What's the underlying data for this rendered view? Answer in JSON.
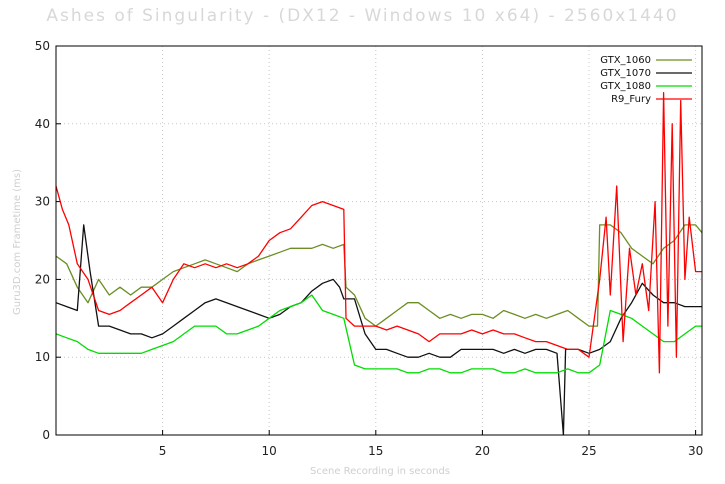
{
  "chart_data": {
    "type": "line",
    "title": "Ashes of Singularity - (DX12 - Windows 10 x64) - 2560x1440",
    "xlabel": "Scene Recording in seconds",
    "ylabel": "Guru3D.com Frametime (ms)",
    "xlim": [
      0,
      30.3
    ],
    "ylim": [
      0,
      50
    ],
    "xticks": [
      5,
      10,
      15,
      20,
      25,
      30
    ],
    "yticks": [
      0,
      10,
      20,
      30,
      40,
      50
    ],
    "grid": true,
    "legend_position": "top-right",
    "series": [
      {
        "name": "GTX_1060",
        "color": "#6b8e23",
        "points": [
          [
            0,
            23
          ],
          [
            0.5,
            22
          ],
          [
            1,
            19
          ],
          [
            1.5,
            17
          ],
          [
            2,
            20
          ],
          [
            2.5,
            18
          ],
          [
            3,
            19
          ],
          [
            3.5,
            18
          ],
          [
            4,
            19
          ],
          [
            4.5,
            19
          ],
          [
            5,
            20
          ],
          [
            5.5,
            21
          ],
          [
            6,
            21.5
          ],
          [
            6.5,
            22
          ],
          [
            7,
            22.5
          ],
          [
            7.5,
            22
          ],
          [
            8,
            21.5
          ],
          [
            8.5,
            21
          ],
          [
            9,
            22
          ],
          [
            9.5,
            22.5
          ],
          [
            10,
            23
          ],
          [
            10.5,
            23.5
          ],
          [
            11,
            24
          ],
          [
            11.5,
            24
          ],
          [
            12,
            24
          ],
          [
            12.5,
            24.5
          ],
          [
            13,
            24
          ],
          [
            13.5,
            24.5
          ],
          [
            13.6,
            19
          ],
          [
            14,
            18
          ],
          [
            14.5,
            15
          ],
          [
            15,
            14
          ],
          [
            15.5,
            15
          ],
          [
            16,
            16
          ],
          [
            16.5,
            17
          ],
          [
            17,
            17
          ],
          [
            17.5,
            16
          ],
          [
            18,
            15
          ],
          [
            18.5,
            15.5
          ],
          [
            19,
            15
          ],
          [
            19.5,
            15.5
          ],
          [
            20,
            15.5
          ],
          [
            20.5,
            15
          ],
          [
            21,
            16
          ],
          [
            21.5,
            15.5
          ],
          [
            22,
            15
          ],
          [
            22.5,
            15.5
          ],
          [
            23,
            15
          ],
          [
            23.5,
            15.5
          ],
          [
            24,
            16
          ],
          [
            24.5,
            15
          ],
          [
            25,
            14
          ],
          [
            25.4,
            14
          ],
          [
            25.5,
            27
          ],
          [
            26,
            27
          ],
          [
            26.5,
            26
          ],
          [
            27,
            24
          ],
          [
            27.5,
            23
          ],
          [
            28,
            22
          ],
          [
            28.5,
            24
          ],
          [
            29,
            25
          ],
          [
            29.5,
            27
          ],
          [
            30,
            27
          ],
          [
            30.3,
            26
          ]
        ]
      },
      {
        "name": "GTX_1070",
        "color": "#111111",
        "points": [
          [
            0,
            17
          ],
          [
            0.5,
            16.5
          ],
          [
            1,
            16
          ],
          [
            1.3,
            27
          ],
          [
            1.6,
            21
          ],
          [
            2,
            14
          ],
          [
            2.5,
            14
          ],
          [
            3,
            13.5
          ],
          [
            3.5,
            13
          ],
          [
            4,
            13
          ],
          [
            4.5,
            12.5
          ],
          [
            5,
            13
          ],
          [
            5.5,
            14
          ],
          [
            6,
            15
          ],
          [
            6.5,
            16
          ],
          [
            7,
            17
          ],
          [
            7.5,
            17.5
          ],
          [
            8,
            17
          ],
          [
            8.5,
            16.5
          ],
          [
            9,
            16
          ],
          [
            9.5,
            15.5
          ],
          [
            10,
            15
          ],
          [
            10.5,
            15.5
          ],
          [
            11,
            16.5
          ],
          [
            11.5,
            17
          ],
          [
            12,
            18.5
          ],
          [
            12.5,
            19.5
          ],
          [
            13,
            20
          ],
          [
            13.3,
            19
          ],
          [
            13.5,
            17.5
          ],
          [
            14,
            17.5
          ],
          [
            14.5,
            13
          ],
          [
            15,
            11
          ],
          [
            15.5,
            11
          ],
          [
            16,
            10.5
          ],
          [
            16.5,
            10
          ],
          [
            17,
            10
          ],
          [
            17.5,
            10.5
          ],
          [
            18,
            10
          ],
          [
            18.5,
            10
          ],
          [
            19,
            11
          ],
          [
            19.5,
            11
          ],
          [
            20,
            11
          ],
          [
            20.5,
            11
          ],
          [
            21,
            10.5
          ],
          [
            21.5,
            11
          ],
          [
            22,
            10.5
          ],
          [
            22.5,
            11
          ],
          [
            23,
            11
          ],
          [
            23.5,
            10.5
          ],
          [
            23.8,
            0
          ],
          [
            23.9,
            11
          ],
          [
            24.5,
            11
          ],
          [
            25,
            10.5
          ],
          [
            25.5,
            11
          ],
          [
            26,
            12
          ],
          [
            26.5,
            15
          ],
          [
            27,
            17
          ],
          [
            27.5,
            19.5
          ],
          [
            28,
            18
          ],
          [
            28.5,
            17
          ],
          [
            29,
            17
          ],
          [
            29.5,
            16.5
          ],
          [
            30,
            16.5
          ],
          [
            30.3,
            16.5
          ]
        ]
      },
      {
        "name": "GTX_1080",
        "color": "#00dd00",
        "points": [
          [
            0,
            13
          ],
          [
            0.5,
            12.5
          ],
          [
            1,
            12
          ],
          [
            1.5,
            11
          ],
          [
            2,
            10.5
          ],
          [
            2.5,
            10.5
          ],
          [
            3,
            10.5
          ],
          [
            3.5,
            10.5
          ],
          [
            4,
            10.5
          ],
          [
            4.5,
            11
          ],
          [
            5,
            11.5
          ],
          [
            5.5,
            12
          ],
          [
            6,
            13
          ],
          [
            6.5,
            14
          ],
          [
            7,
            14
          ],
          [
            7.5,
            14
          ],
          [
            8,
            13
          ],
          [
            8.5,
            13
          ],
          [
            9,
            13.5
          ],
          [
            9.5,
            14
          ],
          [
            10,
            15
          ],
          [
            10.5,
            16
          ],
          [
            11,
            16.5
          ],
          [
            11.5,
            17
          ],
          [
            12,
            18
          ],
          [
            12.5,
            16
          ],
          [
            13,
            15.5
          ],
          [
            13.5,
            15
          ],
          [
            14,
            9
          ],
          [
            14.5,
            8.5
          ],
          [
            15,
            8.5
          ],
          [
            15.5,
            8.5
          ],
          [
            16,
            8.5
          ],
          [
            16.5,
            8
          ],
          [
            17,
            8
          ],
          [
            17.5,
            8.5
          ],
          [
            18,
            8.5
          ],
          [
            18.5,
            8
          ],
          [
            19,
            8
          ],
          [
            19.5,
            8.5
          ],
          [
            20,
            8.5
          ],
          [
            20.5,
            8.5
          ],
          [
            21,
            8
          ],
          [
            21.5,
            8
          ],
          [
            22,
            8.5
          ],
          [
            22.5,
            8
          ],
          [
            23,
            8
          ],
          [
            23.5,
            8
          ],
          [
            24,
            8.5
          ],
          [
            24.5,
            8
          ],
          [
            25,
            8
          ],
          [
            25.5,
            9
          ],
          [
            26,
            16
          ],
          [
            26.5,
            15.5
          ],
          [
            27,
            15
          ],
          [
            27.5,
            14
          ],
          [
            28,
            13
          ],
          [
            28.5,
            12
          ],
          [
            29,
            12
          ],
          [
            29.5,
            13
          ],
          [
            30,
            14
          ],
          [
            30.3,
            14
          ]
        ]
      },
      {
        "name": "R9_Fury",
        "color": "#ff0000",
        "points": [
          [
            0,
            32
          ],
          [
            0.3,
            29
          ],
          [
            0.6,
            27
          ],
          [
            1,
            22
          ],
          [
            1.5,
            20
          ],
          [
            2,
            16
          ],
          [
            2.5,
            15.5
          ],
          [
            3,
            16
          ],
          [
            3.5,
            17
          ],
          [
            4,
            18
          ],
          [
            4.5,
            19
          ],
          [
            5,
            17
          ],
          [
            5.5,
            20
          ],
          [
            6,
            22
          ],
          [
            6.5,
            21.5
          ],
          [
            7,
            22
          ],
          [
            7.5,
            21.5
          ],
          [
            8,
            22
          ],
          [
            8.5,
            21.5
          ],
          [
            9,
            22
          ],
          [
            9.5,
            23
          ],
          [
            10,
            25
          ],
          [
            10.5,
            26
          ],
          [
            11,
            26.5
          ],
          [
            11.5,
            28
          ],
          [
            12,
            29.5
          ],
          [
            12.5,
            30
          ],
          [
            13,
            29.5
          ],
          [
            13.5,
            29
          ],
          [
            13.6,
            15
          ],
          [
            14,
            14
          ],
          [
            14.5,
            14
          ],
          [
            15,
            14
          ],
          [
            15.5,
            13.5
          ],
          [
            16,
            14
          ],
          [
            16.5,
            13.5
          ],
          [
            17,
            13
          ],
          [
            17.5,
            12
          ],
          [
            18,
            13
          ],
          [
            18.5,
            13
          ],
          [
            19,
            13
          ],
          [
            19.5,
            13.5
          ],
          [
            20,
            13
          ],
          [
            20.5,
            13.5
          ],
          [
            21,
            13
          ],
          [
            21.5,
            13
          ],
          [
            22,
            12.5
          ],
          [
            22.5,
            12
          ],
          [
            23,
            12
          ],
          [
            23.5,
            11.5
          ],
          [
            24,
            11
          ],
          [
            24.5,
            11
          ],
          [
            25,
            10
          ],
          [
            25.5,
            20
          ],
          [
            25.8,
            28
          ],
          [
            26,
            18
          ],
          [
            26.3,
            32
          ],
          [
            26.6,
            12
          ],
          [
            26.9,
            24
          ],
          [
            27.2,
            18
          ],
          [
            27.5,
            22
          ],
          [
            27.8,
            16
          ],
          [
            28.1,
            30
          ],
          [
            28.3,
            8
          ],
          [
            28.5,
            44
          ],
          [
            28.7,
            14
          ],
          [
            28.9,
            40
          ],
          [
            29.1,
            10
          ],
          [
            29.3,
            43
          ],
          [
            29.5,
            20
          ],
          [
            29.7,
            28
          ],
          [
            30,
            21
          ],
          [
            30.3,
            21
          ]
        ]
      }
    ]
  }
}
